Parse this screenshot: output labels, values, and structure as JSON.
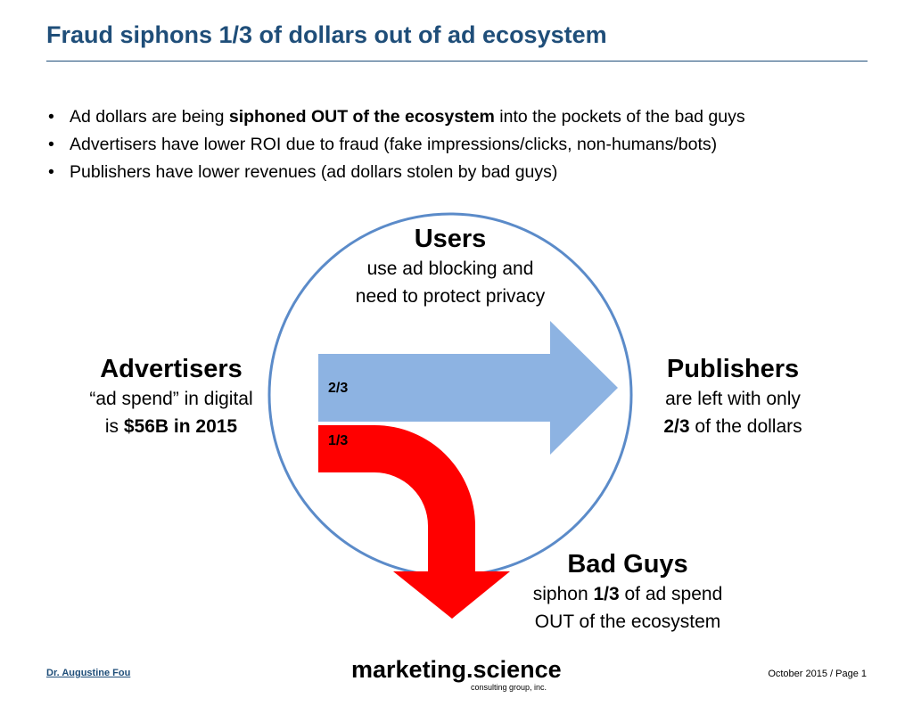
{
  "title": "Fraud siphons 1/3 of dollars out of ad ecosystem",
  "bullets": [
    {
      "pre": "Ad dollars are being ",
      "bold": "siphoned OUT of the ecosystem",
      "post": " into the pockets of the bad guys"
    },
    {
      "text": "Advertisers have lower ROI due to fraud (fake impressions/clicks, non-humans/bots)"
    },
    {
      "text": "Publishers have lower revenues (ad dollars stolen by bad guys)"
    }
  ],
  "bullet_symbol": "•",
  "diagram": {
    "colors": {
      "circle": "#5b8bc9",
      "blue_arrow": "#8db3e2",
      "red_arrow": "#ff0000"
    },
    "users": {
      "heading": "Users",
      "line1": "use ad blocking and",
      "line2": "need to protect privacy"
    },
    "advertisers": {
      "heading": "Advertisers",
      "line1": "“ad spend” in digital",
      "line2_pre": "is ",
      "line2_bold": "$56B in 2015"
    },
    "publishers": {
      "heading": "Publishers",
      "line1": "are left with only",
      "line2_bold": "2/3",
      "line2_post": " of the dollars"
    },
    "bad_guys": {
      "heading": "Bad Guys",
      "line1_pre": "siphon ",
      "line1_bold": "1/3",
      "line1_post": " of ad spend",
      "line2": "OUT of the ecosystem"
    },
    "fraction_blue": "2/3",
    "fraction_red": "1/3"
  },
  "footer": {
    "author": "Dr. Augustine Fou",
    "brand": "marketing.science",
    "brand_sub": "consulting group, inc.",
    "page_info": "October 2015 / Page 1"
  }
}
